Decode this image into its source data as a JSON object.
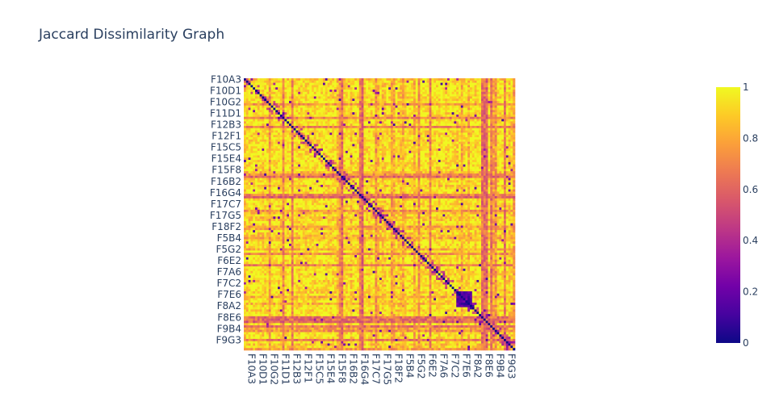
{
  "chart_data": {
    "type": "heatmap",
    "title": "Jaccard Dissimilarity Graph",
    "x_tick_labels": [
      "F10A3",
      "F10D1",
      "F10G2",
      "F11D1",
      "F12B3",
      "F12F1",
      "F15C5",
      "F15E4",
      "F15F8",
      "F16B2",
      "F16G4",
      "F17C7",
      "F17G5",
      "F18F2",
      "F5B4",
      "F5G2",
      "F6E2",
      "F7A6",
      "F7C2",
      "F7E6",
      "F8A2",
      "F8E6",
      "F9B4",
      "F9G3"
    ],
    "y_tick_labels": [
      "F10A3",
      "F10D1",
      "F10G2",
      "F11D1",
      "F12B3",
      "F12F1",
      "F15C5",
      "F15E4",
      "F15F8",
      "F16B2",
      "F16G4",
      "F17C7",
      "F17G5",
      "F18F2",
      "F5B4",
      "F5G2",
      "F6E2",
      "F7A6",
      "F7C2",
      "F7E6",
      "F8A2",
      "F8E6",
      "F9B4",
      "F9G3"
    ],
    "y_reversed": true,
    "zrange": [
      0,
      1
    ],
    "diagonal_value": 0,
    "typical_offdiagonal_range": [
      0.8,
      1
    ],
    "colorscale": "Plasma",
    "colorscale_colors": [
      "#0d0887",
      "#46039f",
      "#7201a8",
      "#9c179e",
      "#bd3786",
      "#d8576b",
      "#ed7953",
      "#fb9f3a",
      "#fdca26",
      "#f0f921"
    ],
    "colorbar": {
      "ticks": [
        "0",
        "0.2",
        "0.4",
        "0.6",
        "0.8",
        "1"
      ],
      "tick_values": [
        0,
        0.2,
        0.4,
        0.6,
        0.8,
        1
      ]
    },
    "grid": false
  }
}
